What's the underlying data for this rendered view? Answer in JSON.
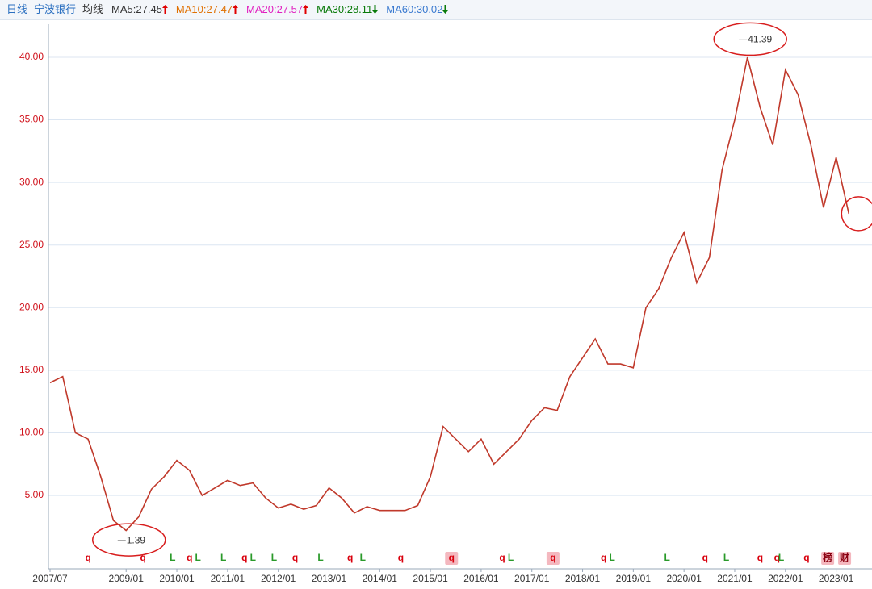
{
  "header": {
    "items": [
      {
        "text": "日线",
        "color": "#2a6fc0"
      },
      {
        "text": "宁波银行",
        "color": "#2a6fc0"
      },
      {
        "text": "均线",
        "color": "#333333"
      }
    ],
    "ma": [
      {
        "label": "MA5:27.45",
        "color": "#333333",
        "trend": "up"
      },
      {
        "label": "MA10:27.47",
        "color": "#e07000",
        "trend": "up"
      },
      {
        "label": "MA20:27.57",
        "color": "#e020c0",
        "trend": "up"
      },
      {
        "label": "MA30:28.11",
        "color": "#0a7a0a",
        "trend": "down"
      },
      {
        "label": "MA60:30.02",
        "color": "#3a7ad0",
        "trend": "down"
      }
    ]
  },
  "chart_data": {
    "type": "line",
    "color": "#c0392b",
    "x": [
      "2007/07",
      "2007/10",
      "2008/01",
      "2008/04",
      "2008/07",
      "2008/10",
      "2009/01",
      "2009/04",
      "2009/07",
      "2009/10",
      "2010/01",
      "2010/04",
      "2010/07",
      "2010/10",
      "2011/01",
      "2011/04",
      "2011/07",
      "2011/10",
      "2012/01",
      "2012/04",
      "2012/07",
      "2012/10",
      "2013/01",
      "2013/04",
      "2013/07",
      "2013/10",
      "2014/01",
      "2014/04",
      "2014/07",
      "2014/10",
      "2015/01",
      "2015/04",
      "2015/07",
      "2015/10",
      "2016/01",
      "2016/04",
      "2016/07",
      "2016/10",
      "2017/01",
      "2017/04",
      "2017/07",
      "2017/10",
      "2018/01",
      "2018/04",
      "2018/07",
      "2018/10",
      "2019/01",
      "2019/04",
      "2019/07",
      "2019/10",
      "2020/01",
      "2020/04",
      "2020/07",
      "2020/10",
      "2021/01",
      "2021/04",
      "2021/07",
      "2021/10",
      "2022/01",
      "2022/04",
      "2022/07",
      "2022/10",
      "2023/01",
      "2023/04"
    ],
    "values": [
      14,
      14.5,
      10,
      9.5,
      6.5,
      3,
      2.2,
      3.3,
      5.5,
      6.5,
      7.8,
      7,
      5,
      5.6,
      6.2,
      5.8,
      6,
      4.8,
      4,
      4.3,
      3.9,
      4.2,
      5.6,
      4.8,
      3.6,
      4.1,
      3.8,
      3.8,
      3.8,
      4.2,
      6.5,
      10.5,
      9.5,
      8.5,
      9.5,
      7.5,
      8.5,
      9.5,
      11,
      12,
      11.8,
      14.5,
      16,
      17.5,
      15.5,
      15.5,
      15.2,
      20,
      21.5,
      24,
      26,
      22,
      24,
      31,
      35,
      40,
      36,
      33,
      39,
      37,
      33,
      28,
      32,
      27.5
    ],
    "xlim": [
      "2007/07",
      "2023/07"
    ],
    "xticks": [
      "2007/07",
      "2009/01",
      "2010/01",
      "2011/01",
      "2012/01",
      "2013/01",
      "2014/01",
      "2015/01",
      "2016/01",
      "2017/01",
      "2018/01",
      "2019/01",
      "2020/01",
      "2021/01",
      "2022/01",
      "2023/01"
    ],
    "ylim": [
      -0.86,
      42.64
    ],
    "yticks": [
      {
        "value": 5,
        "label": "5.00"
      },
      {
        "value": 10,
        "label": "10.00"
      },
      {
        "value": 15,
        "label": "15.00"
      },
      {
        "value": 20,
        "label": "20.00"
      },
      {
        "value": 25,
        "label": "25.00"
      },
      {
        "value": 30,
        "label": "30.00"
      },
      {
        "value": 35,
        "label": "35.00"
      },
      {
        "value": 40,
        "label": "40.00"
      }
    ],
    "grid": true,
    "annotations": [
      {
        "x": "2021/02",
        "value": 41.39
      },
      {
        "x": "2008/11",
        "value": 1.39
      }
    ],
    "markers": [
      {
        "x": "2008/04",
        "label": "q"
      },
      {
        "x": "2009/05",
        "label": "q"
      },
      {
        "x": "2009/12",
        "label": "L"
      },
      {
        "x": "2010/04",
        "label": "q"
      },
      {
        "x": "2010/06",
        "label": "L"
      },
      {
        "x": "2010/12",
        "label": "L"
      },
      {
        "x": "2011/05",
        "label": "q"
      },
      {
        "x": "2011/07",
        "label": "L"
      },
      {
        "x": "2011/12",
        "label": "L"
      },
      {
        "x": "2012/05",
        "label": "q"
      },
      {
        "x": "2012/11",
        "label": "L"
      },
      {
        "x": "2013/06",
        "label": "q"
      },
      {
        "x": "2013/09",
        "label": "L"
      },
      {
        "x": "2014/06",
        "label": "q"
      },
      {
        "x": "2015/06",
        "label": "q",
        "boxed": true
      },
      {
        "x": "2016/06",
        "label": "q"
      },
      {
        "x": "2016/08",
        "label": "L"
      },
      {
        "x": "2017/06",
        "label": "q",
        "boxed": true
      },
      {
        "x": "2018/06",
        "label": "q"
      },
      {
        "x": "2018/08",
        "label": "L"
      },
      {
        "x": "2019/09",
        "label": "L"
      },
      {
        "x": "2020/06",
        "label": "q"
      },
      {
        "x": "2020/11",
        "label": "L"
      },
      {
        "x": "2021/07",
        "label": "q"
      },
      {
        "x": "2021/11",
        "label": "q"
      },
      {
        "x": "2021/12",
        "label": "L"
      },
      {
        "x": "2022/06",
        "label": "q"
      },
      {
        "x": "2022/11",
        "label": "榜",
        "boxed": true
      },
      {
        "x": "2023/03",
        "label": "财",
        "boxed": true
      }
    ]
  }
}
